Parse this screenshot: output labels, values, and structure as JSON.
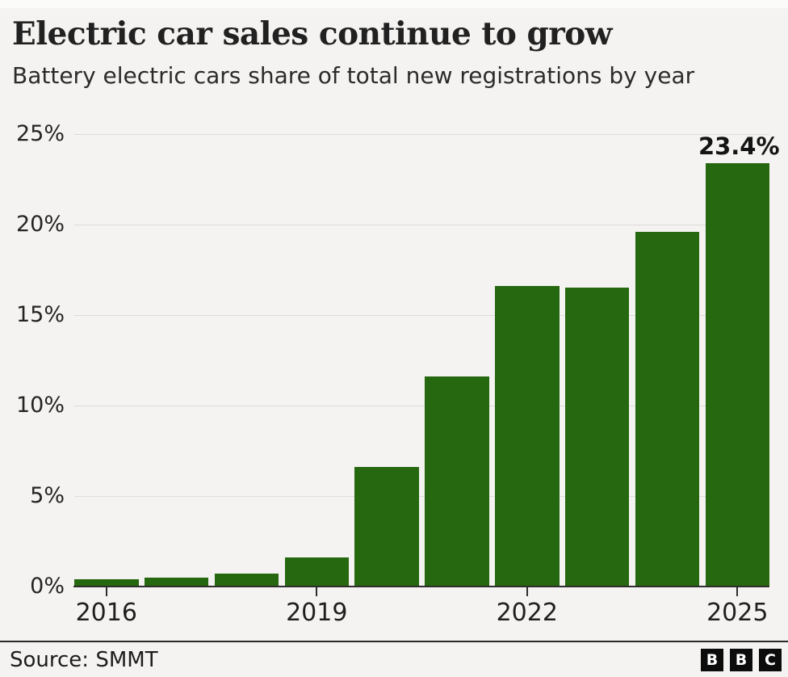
{
  "header": {
    "title": "Electric car sales continue to grow",
    "subtitle": "Battery electric cars share of total new registrations by year"
  },
  "chart_data": {
    "type": "bar",
    "title": "Electric car sales continue to grow",
    "subtitle": "Battery electric cars share of total new registrations by year",
    "categories": [
      "2016",
      "2017",
      "2018",
      "2019",
      "2020",
      "2021",
      "2022",
      "2023",
      "2024",
      "2025"
    ],
    "values": [
      0.4,
      0.5,
      0.7,
      1.6,
      6.6,
      11.6,
      16.6,
      16.5,
      19.6,
      23.4
    ],
    "xlabel": "",
    "ylabel": "",
    "ylim": [
      0,
      25
    ],
    "ytick_labels": [
      "0%",
      "5%",
      "10%",
      "15%",
      "20%",
      "25%"
    ],
    "xtick_labels": [
      "2016",
      "2019",
      "2022",
      "2025"
    ],
    "grid": true,
    "legend": false,
    "bar_color": "#26680f",
    "annotation": {
      "category": "2025",
      "text": "23.4%"
    }
  },
  "footer": {
    "source": "Source: SMMT",
    "logo_letters": [
      "B",
      "B",
      "C"
    ]
  },
  "colors": {
    "background": "#f4f3f1",
    "bar": "#26680f",
    "gridline": "#dcdcdc",
    "axis": "#2e2e2e",
    "text": "#212121"
  }
}
